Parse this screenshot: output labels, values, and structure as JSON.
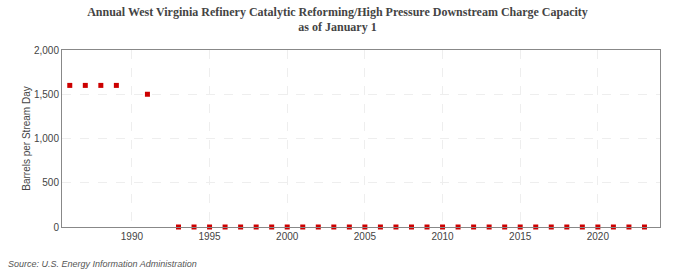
{
  "chart_data": {
    "type": "scatter",
    "title": "Annual West Virginia Refinery Catalytic Reforming/High Pressure Downstream Charge Capacity\nas of January 1",
    "ylabel": "Barrels per Stream Day",
    "source": "Source: U.S. Energy Information Administration",
    "color": "#cc0000",
    "marker": "square",
    "grid": true,
    "x": [
      1986,
      1987,
      1988,
      1989,
      1991,
      1993,
      1994,
      1995,
      1996,
      1997,
      1998,
      1999,
      2000,
      2001,
      2002,
      2003,
      2004,
      2005,
      2006,
      2007,
      2008,
      2009,
      2010,
      2011,
      2012,
      2013,
      2014,
      2015,
      2016,
      2017,
      2018,
      2019,
      2020,
      2021,
      2022,
      2023
    ],
    "values": [
      1600,
      1600,
      1600,
      1600,
      1500,
      0,
      0,
      0,
      0,
      0,
      0,
      0,
      0,
      0,
      0,
      0,
      0,
      0,
      0,
      0,
      0,
      0,
      0,
      0,
      0,
      0,
      0,
      0,
      0,
      0,
      0,
      0,
      0,
      0,
      0,
      0
    ],
    "xlim": [
      1985.5,
      2024
    ],
    "ylim": [
      0,
      2000
    ],
    "xticks": [
      1990,
      1995,
      2000,
      2005,
      2010,
      2015,
      2020
    ],
    "yticks": [
      0,
      500,
      {
        "value": 1000,
        "label": "1,000"
      },
      {
        "value": 1500,
        "label": "1,500"
      },
      {
        "value": 2000,
        "label": "2,000"
      }
    ]
  }
}
